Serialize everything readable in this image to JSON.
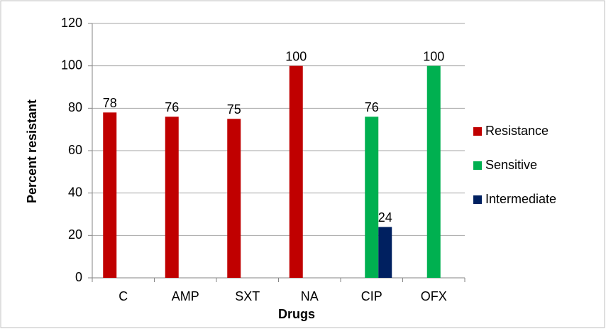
{
  "chart_data": {
    "type": "bar",
    "x_label": "Drugs",
    "y_label": "Percent resistant",
    "categories": [
      "C",
      "AMP",
      "SXT",
      "NA",
      "CIP",
      "OFX"
    ],
    "series": [
      {
        "name": "Resistance",
        "color": "#c00000",
        "values": [
          78,
          76,
          75,
          100,
          null,
          null
        ]
      },
      {
        "name": "Sensitive",
        "color": "#00b050",
        "values": [
          null,
          null,
          null,
          null,
          76,
          100
        ]
      },
      {
        "name": "Intermediate",
        "color": "#002060",
        "values": [
          null,
          null,
          null,
          null,
          24,
          null
        ]
      }
    ],
    "ylim": [
      0,
      120
    ],
    "yticks": [
      0,
      20,
      40,
      60,
      80,
      100,
      120
    ],
    "grid": true,
    "legend": "right"
  }
}
